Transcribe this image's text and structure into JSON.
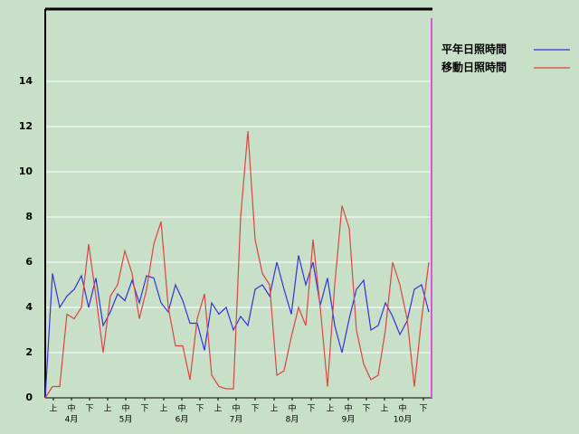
{
  "chart_data": {
    "type": "line",
    "x": [
      0,
      4,
      8,
      12,
      16,
      20,
      24,
      28,
      32,
      36,
      40,
      44,
      48,
      52,
      56,
      60,
      64,
      68,
      72,
      76,
      80,
      84,
      88,
      92,
      96,
      100,
      104,
      108,
      112,
      116,
      120,
      124,
      128,
      132,
      136,
      140,
      144,
      148,
      152,
      156,
      160,
      164,
      168,
      172,
      176,
      180,
      184,
      188,
      192,
      196,
      200,
      204,
      208,
      212
    ],
    "series": [
      {
        "name": "平年日照時間",
        "color": "#3333dd",
        "values": [
          0,
          5.5,
          4.0,
          4.5,
          4.8,
          5.4,
          4.0,
          5.3,
          3.2,
          3.8,
          4.6,
          4.3,
          5.2,
          4.2,
          5.4,
          5.3,
          4.2,
          3.8,
          5.0,
          4.3,
          3.3,
          3.3,
          2.1,
          4.2,
          3.7,
          4.0,
          3.0,
          3.6,
          3.2,
          4.8,
          5.0,
          4.5,
          6.0,
          4.8,
          3.7,
          6.3,
          5.0,
          6.0,
          4.1,
          5.3,
          3.2,
          2.0,
          3.5,
          4.8,
          5.2,
          3.0,
          3.2,
          4.2,
          3.6,
          2.8,
          3.4,
          4.8,
          5.0,
          3.8
        ]
      },
      {
        "name": "移動日照時間",
        "color": "#dd4444",
        "values": [
          0,
          0.5,
          0.5,
          3.7,
          3.5,
          4.0,
          6.8,
          4.5,
          2.0,
          4.5,
          5.0,
          6.5,
          5.5,
          3.5,
          4.8,
          6.8,
          7.8,
          4.0,
          2.3,
          2.3,
          0.8,
          3.5,
          4.6,
          1.0,
          0.5,
          0.4,
          0.4,
          8.0,
          11.8,
          7.0,
          5.5,
          5.0,
          1.0,
          1.2,
          2.7,
          4.0,
          3.2,
          7.0,
          4.0,
          0.5,
          5.0,
          8.5,
          7.5,
          3.0,
          1.5,
          0.8,
          1.0,
          3.0,
          6.0,
          5.0,
          3.5,
          0.5,
          3.5,
          6.0
        ]
      }
    ],
    "xlim": [
      0,
      214
    ],
    "xticks": [
      {
        "value": 4.5,
        "label": "上"
      },
      {
        "value": 14.5,
        "label": "中"
      },
      {
        "value": 24.5,
        "label": "下"
      },
      {
        "value": 34.5,
        "label": "上"
      },
      {
        "value": 44.5,
        "label": "中"
      },
      {
        "value": 55,
        "label": "下"
      },
      {
        "value": 65.5,
        "label": "上"
      },
      {
        "value": 75.5,
        "label": "中"
      },
      {
        "value": 85.5,
        "label": "下"
      },
      {
        "value": 95.5,
        "label": "上"
      },
      {
        "value": 105.5,
        "label": "中"
      },
      {
        "value": 116,
        "label": "下"
      },
      {
        "value": 126.5,
        "label": "上"
      },
      {
        "value": 136.5,
        "label": "中"
      },
      {
        "value": 147,
        "label": "下"
      },
      {
        "value": 157.5,
        "label": "上"
      },
      {
        "value": 167.5,
        "label": "中"
      },
      {
        "value": 177.5,
        "label": "下"
      },
      {
        "value": 187.5,
        "label": "上"
      },
      {
        "value": 197.5,
        "label": "中"
      },
      {
        "value": 209,
        "label": "下"
      }
    ],
    "month_labels": [
      {
        "value": 14.5,
        "label": "4月"
      },
      {
        "value": 44.5,
        "label": "5月"
      },
      {
        "value": 75.5,
        "label": "6月"
      },
      {
        "value": 105.5,
        "label": "7月"
      },
      {
        "value": 136.5,
        "label": "8月"
      },
      {
        "value": 167.5,
        "label": "9月"
      },
      {
        "value": 197.5,
        "label": "10月"
      }
    ],
    "ylim": [
      0,
      17.2
    ],
    "yticks": [
      0,
      2,
      4,
      6,
      8,
      10,
      12,
      14
    ],
    "grid": true
  }
}
